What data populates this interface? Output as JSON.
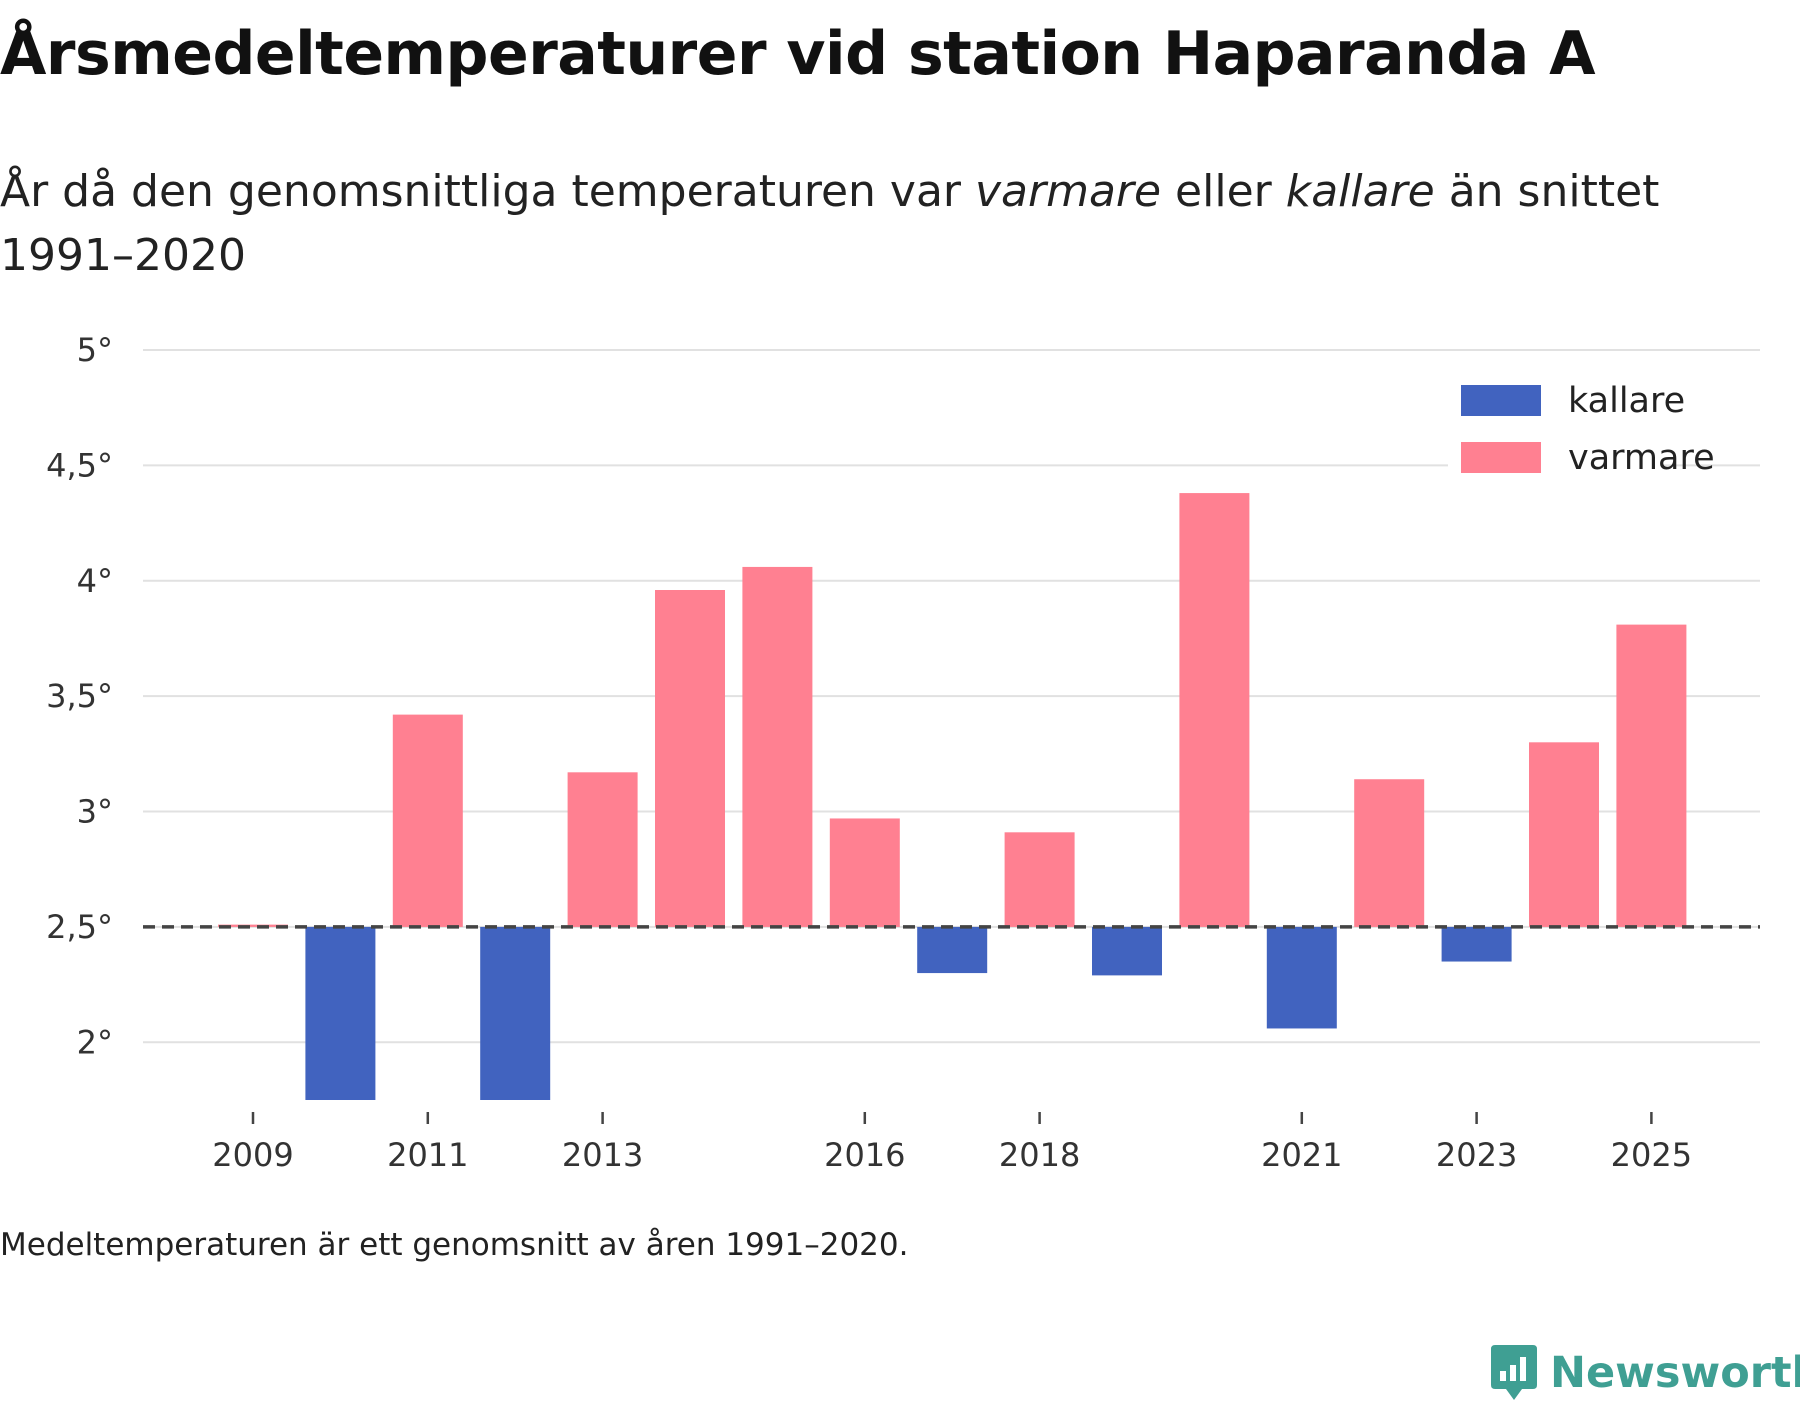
{
  "title": "Årsmedeltemperaturer vid station Haparanda A",
  "subtitle": {
    "part1": "År då den genomsnittliga temperaturen var ",
    "warmer": "varmare",
    "part2": " eller ",
    "colder": "kallare",
    "part3": " än snittet 1991–2020"
  },
  "footnote": "Medeltemperaturen är ett genomsnitt av åren 1991–2020.",
  "brand": {
    "name": "Newsworthy",
    "icon": "newsworthy-logo-icon",
    "color": "#3f9f93"
  },
  "colors": {
    "colder": "#4163bf",
    "warmer": "#ff8091",
    "baseline": "#444444",
    "grid": "#e1e1e1",
    "axis_text": "#333333"
  },
  "chart_data": {
    "type": "bar",
    "title": "Årsmedeltemperaturer vid station Haparanda A",
    "xlabel": "",
    "ylabel": "",
    "baseline": 2.5,
    "baseline_label": "snittet 1991–2020",
    "ylim": [
      1.75,
      5
    ],
    "yticks": [
      2,
      2.5,
      3,
      3.5,
      4,
      4.5,
      5
    ],
    "ytick_labels": [
      "2°",
      "2,5°",
      "3°",
      "3,5°",
      "4°",
      "4,5°",
      "5°"
    ],
    "xticks": [
      2009,
      2011,
      2013,
      2016,
      2018,
      2021,
      2023,
      2025
    ],
    "grid": true,
    "legend_position": "top-right",
    "legend": [
      {
        "key": "colder",
        "label": "kallare"
      },
      {
        "key": "warmer",
        "label": "varmare"
      }
    ],
    "categories": [
      2009,
      2010,
      2011,
      2012,
      2013,
      2014,
      2015,
      2016,
      2017,
      2018,
      2019,
      2020,
      2021,
      2022,
      2023,
      2024,
      2025
    ],
    "values": [
      2.51,
      1.75,
      3.42,
      1.75,
      3.17,
      3.96,
      4.06,
      2.97,
      2.3,
      2.91,
      2.29,
      4.38,
      2.06,
      3.14,
      2.35,
      3.3,
      3.81
    ]
  }
}
